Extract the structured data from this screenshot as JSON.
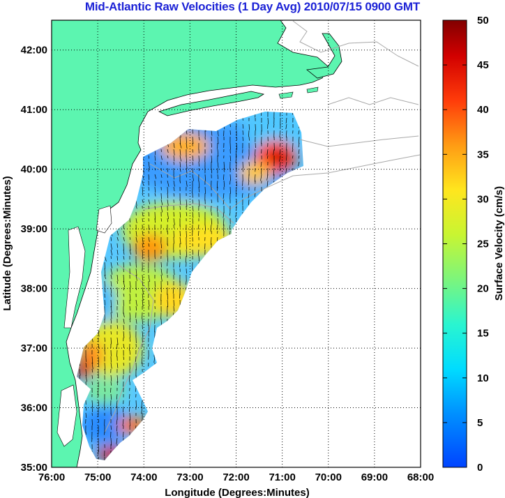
{
  "title": "Mid-Atlantic Raw Velocities (1 Day Avg) 2010/07/15 0900 GMT",
  "map": {
    "x_label": "Longitude (Degrees:Minutes)",
    "y_label": "Latitude (Degrees:Minutes)",
    "x_ticks": [
      "76:00",
      "75:00",
      "74:00",
      "73:00",
      "72:00",
      "71:00",
      "70:00",
      "69:00",
      "68:00"
    ],
    "y_ticks": [
      "42:00",
      "41:00",
      "40:00",
      "39:00",
      "38:00",
      "37:00",
      "36:00",
      "35:00"
    ],
    "lon_range": [
      -76,
      -68
    ],
    "lat_range": [
      35,
      42.5
    ],
    "grid": "dotted",
    "land_color": "#5cf5b0",
    "ocean_color": "#ffffff"
  },
  "colorbar": {
    "label": "Surface Velocity (cm/s)",
    "ticks": [
      "0",
      "5",
      "10",
      "15",
      "20",
      "25",
      "30",
      "35",
      "40",
      "45",
      "50"
    ],
    "range": [
      0,
      50
    ],
    "colormap": "jet"
  }
}
